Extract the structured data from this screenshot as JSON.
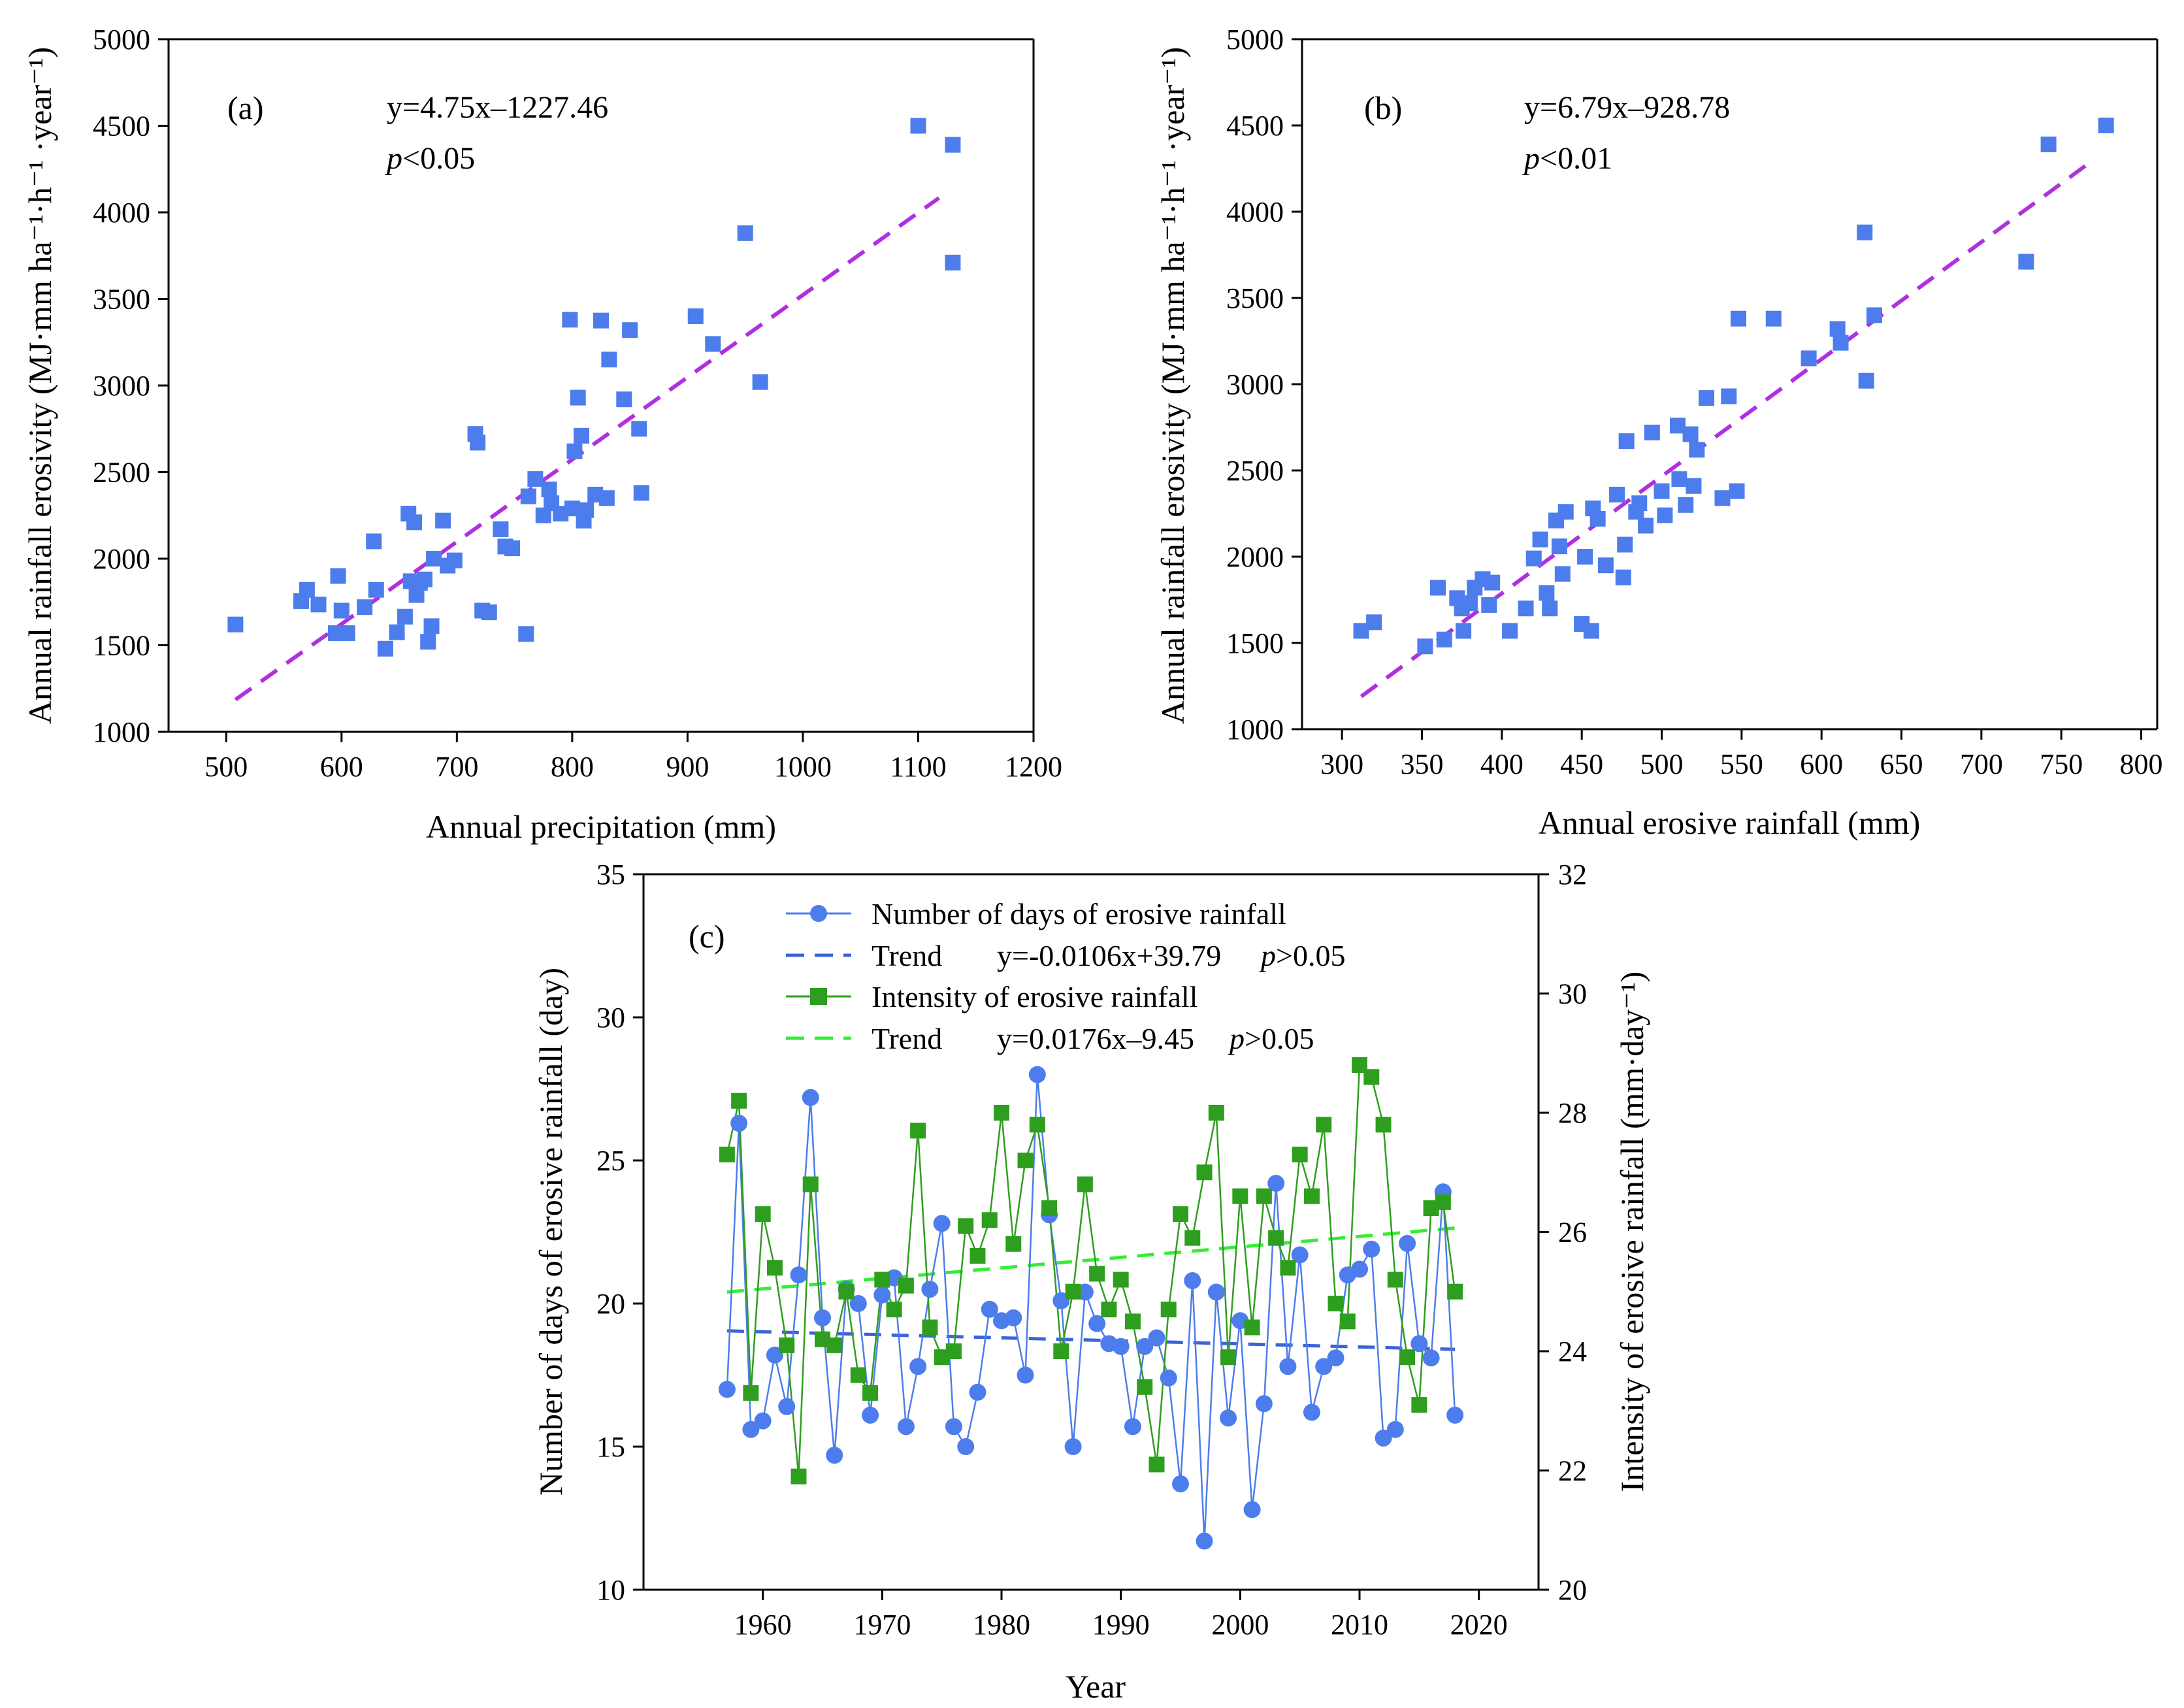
{
  "chart_data": [
    {
      "id": "a",
      "type": "scatter",
      "panel_label": "(a)",
      "xlabel": "Annual precipitation (mm)",
      "ylabel": "Annual rainfall erosivity (MJ·mm ha⁻¹·h⁻¹ ·year⁻¹)",
      "xlim": [
        450,
        1200
      ],
      "ylim": [
        1000,
        5000
      ],
      "xticks": [
        500,
        600,
        700,
        800,
        900,
        1000,
        1100,
        1200
      ],
      "yticks": [
        1000,
        1500,
        2000,
        2500,
        3000,
        3500,
        4000,
        4500,
        5000
      ],
      "equation": "y=4.75x–1227.46",
      "p_prefix": "p",
      "p_value": "<0.05",
      "marker_color": "#4d7ded",
      "trend_color": "#b030e0",
      "trend": {
        "slope": 4.75,
        "intercept": -1227.46,
        "x_range": [
          508,
          1118
        ]
      },
      "points": [
        [
          508,
          1620
        ],
        [
          565,
          1755
        ],
        [
          570,
          1820
        ],
        [
          580,
          1735
        ],
        [
          597,
          1900
        ],
        [
          600,
          1700
        ],
        [
          595,
          1570
        ],
        [
          605,
          1570
        ],
        [
          620,
          1720
        ],
        [
          628,
          2100
        ],
        [
          630,
          1820
        ],
        [
          638,
          1480
        ],
        [
          648,
          1575
        ],
        [
          655,
          1665
        ],
        [
          658,
          2260
        ],
        [
          660,
          1870
        ],
        [
          663,
          2210
        ],
        [
          665,
          1790
        ],
        [
          668,
          1860
        ],
        [
          672,
          1880
        ],
        [
          675,
          1520
        ],
        [
          678,
          1610
        ],
        [
          680,
          2000
        ],
        [
          688,
          2220
        ],
        [
          692,
          1960
        ],
        [
          698,
          1990
        ],
        [
          716,
          2720
        ],
        [
          718,
          2670
        ],
        [
          722,
          1700
        ],
        [
          728,
          1690
        ],
        [
          738,
          2170
        ],
        [
          742,
          2070
        ],
        [
          748,
          2060
        ],
        [
          760,
          1565
        ],
        [
          762,
          2360
        ],
        [
          768,
          2460
        ],
        [
          775,
          2250
        ],
        [
          780,
          2400
        ],
        [
          782,
          2320
        ],
        [
          790,
          2260
        ],
        [
          798,
          3380
        ],
        [
          800,
          2290
        ],
        [
          802,
          2620
        ],
        [
          805,
          2930
        ],
        [
          808,
          2710
        ],
        [
          810,
          2220
        ],
        [
          812,
          2280
        ],
        [
          820,
          2370
        ],
        [
          825,
          3375
        ],
        [
          830,
          2350
        ],
        [
          832,
          3150
        ],
        [
          845,
          2920
        ],
        [
          850,
          3320
        ],
        [
          858,
          2750
        ],
        [
          860,
          2380
        ],
        [
          907,
          3400
        ],
        [
          922,
          3240
        ],
        [
          950,
          3880
        ],
        [
          963,
          3020
        ],
        [
          1100,
          4500
        ],
        [
          1130,
          4390
        ],
        [
          1130,
          3710
        ]
      ]
    },
    {
      "id": "b",
      "type": "scatter",
      "panel_label": "(b)",
      "xlabel": "Annual erosive rainfall (mm)",
      "ylabel": "Annual rainfall erosivity (MJ·mm ha⁻¹·h⁻¹ ·year⁻¹)",
      "xlim": [
        275,
        810
      ],
      "ylim": [
        1000,
        5000
      ],
      "xticks": [
        300,
        350,
        400,
        450,
        500,
        550,
        600,
        650,
        700,
        750,
        800
      ],
      "yticks": [
        1000,
        1500,
        2000,
        2500,
        3000,
        3500,
        4000,
        4500,
        5000
      ],
      "equation": "y=6.79x–928.78",
      "p_prefix": "p",
      "p_value": "<0.01",
      "marker_color": "#4d7ded",
      "trend_color": "#b030e0",
      "trend": {
        "slope": 6.79,
        "intercept": -928.78,
        "x_range": [
          312,
          770
        ]
      },
      "points": [
        [
          312,
          1570
        ],
        [
          320,
          1620
        ],
        [
          352,
          1480
        ],
        [
          360,
          1820
        ],
        [
          364,
          1520
        ],
        [
          372,
          1760
        ],
        [
          375,
          1700
        ],
        [
          376,
          1570
        ],
        [
          380,
          1730
        ],
        [
          383,
          1820
        ],
        [
          388,
          1870
        ],
        [
          392,
          1720
        ],
        [
          394,
          1850
        ],
        [
          405,
          1570
        ],
        [
          415,
          1700
        ],
        [
          420,
          1990
        ],
        [
          424,
          2100
        ],
        [
          428,
          1790
        ],
        [
          430,
          1700
        ],
        [
          434,
          2210
        ],
        [
          436,
          2060
        ],
        [
          438,
          1900
        ],
        [
          440,
          2260
        ],
        [
          450,
          1610
        ],
        [
          452,
          2000
        ],
        [
          456,
          1570
        ],
        [
          457,
          2280
        ],
        [
          460,
          2220
        ],
        [
          465,
          1950
        ],
        [
          472,
          2360
        ],
        [
          476,
          1880
        ],
        [
          477,
          2070
        ],
        [
          478,
          2670
        ],
        [
          484,
          2260
        ],
        [
          486,
          2310
        ],
        [
          490,
          2180
        ],
        [
          494,
          2720
        ],
        [
          500,
          2380
        ],
        [
          502,
          2240
        ],
        [
          510,
          2760
        ],
        [
          511,
          2450
        ],
        [
          515,
          2300
        ],
        [
          518,
          2710
        ],
        [
          520,
          2410
        ],
        [
          522,
          2620
        ],
        [
          528,
          2920
        ],
        [
          538,
          2340
        ],
        [
          542,
          2930
        ],
        [
          547,
          2380
        ],
        [
          548,
          3380
        ],
        [
          570,
          3380
        ],
        [
          592,
          3150
        ],
        [
          610,
          3320
        ],
        [
          612,
          3240
        ],
        [
          627,
          3880
        ],
        [
          628,
          3020
        ],
        [
          633,
          3400
        ],
        [
          728,
          3710
        ],
        [
          742,
          4390
        ],
        [
          778,
          4500
        ]
      ]
    },
    {
      "id": "c",
      "type": "line",
      "panel_label": "(c)",
      "xlabel": "Year",
      "ylabel_left": "Number of days of erosive rainfall (day)",
      "ylabel_right": "Intensity of erosive rainfall (mm·day⁻¹)",
      "xlim": [
        1950,
        2025
      ],
      "ylim_left": [
        10,
        35
      ],
      "ylim_right": [
        20,
        32
      ],
      "xticks": [
        1960,
        1970,
        1980,
        1990,
        2000,
        2010,
        2020
      ],
      "yticks_left": [
        10,
        15,
        20,
        25,
        30,
        35
      ],
      "yticks_right": [
        20,
        22,
        24,
        26,
        28,
        30,
        32
      ],
      "x": [
        1957,
        1958,
        1959,
        1960,
        1961,
        1962,
        1963,
        1964,
        1965,
        1966,
        1967,
        1968,
        1969,
        1970,
        1971,
        1972,
        1973,
        1974,
        1975,
        1976,
        1977,
        1978,
        1979,
        1980,
        1981,
        1982,
        1983,
        1984,
        1985,
        1986,
        1987,
        1988,
        1989,
        1990,
        1991,
        1992,
        1993,
        1994,
        1995,
        1996,
        1997,
        1998,
        1999,
        2000,
        2001,
        2002,
        2003,
        2004,
        2005,
        2006,
        2007,
        2008,
        2009,
        2010,
        2011,
        2012,
        2013,
        2014,
        2015,
        2016,
        2017,
        2018
      ],
      "series": [
        {
          "name": "Number of days of erosive rainfall",
          "axis": "left",
          "color": "#4d7ded",
          "marker": "circle",
          "values": [
            17.0,
            26.3,
            15.6,
            15.9,
            18.2,
            16.4,
            21.0,
            27.2,
            19.5,
            14.7,
            20.5,
            20.0,
            16.1,
            20.3,
            20.9,
            15.7,
            17.8,
            20.5,
            22.8,
            15.7,
            15.0,
            16.9,
            19.8,
            19.4,
            19.5,
            17.5,
            28.0,
            23.1,
            20.1,
            15.0,
            20.4,
            19.3,
            18.6,
            18.5,
            15.7,
            18.5,
            18.8,
            17.4,
            13.7,
            20.8,
            11.7,
            20.4,
            16.0,
            19.4,
            12.8,
            16.5,
            24.2,
            17.8,
            21.7,
            16.2,
            17.8,
            18.1,
            21.0,
            21.2,
            21.9,
            15.3,
            15.6,
            22.1,
            18.6,
            18.1,
            23.9,
            16.1
          ]
        },
        {
          "name": "Intensity of erosive rainfall",
          "axis": "right",
          "color": "#2e9e1e",
          "marker": "square",
          "values": [
            27.3,
            28.2,
            23.3,
            26.3,
            25.4,
            24.1,
            21.9,
            26.8,
            24.2,
            24.1,
            25.0,
            23.6,
            23.3,
            25.2,
            24.7,
            25.1,
            27.7,
            24.4,
            23.9,
            24.0,
            26.1,
            25.6,
            26.2,
            28.0,
            25.8,
            27.2,
            27.8,
            26.4,
            24.0,
            25.0,
            26.8,
            25.3,
            24.7,
            25.2,
            24.5,
            23.4,
            22.1,
            24.7,
            26.3,
            25.9,
            27.0,
            28.0,
            23.9,
            26.6,
            24.4,
            26.6,
            25.9,
            25.4,
            27.3,
            26.6,
            27.8,
            24.8,
            24.5,
            28.8,
            28.6,
            27.8,
            25.2,
            23.9,
            23.1,
            26.4,
            26.5,
            25.0
          ]
        }
      ],
      "legend": [
        {
          "label": "Number of days of erosive rainfall",
          "color": "#4d7ded",
          "kind": "circle-line"
        },
        {
          "label": "Trend",
          "equation": "y=-0.0106x+39.79",
          "p_prefix": "p",
          "p_value": ">0.05",
          "color": "#3b63d8",
          "kind": "dash"
        },
        {
          "label": "Intensity of erosive rainfall",
          "color": "#2e9e1e",
          "kind": "square-line"
        },
        {
          "label": "Trend",
          "equation": "y=0.0176x–9.45",
          "p_prefix": "p",
          "p_value": ">0.05",
          "color": "#33ee33",
          "kind": "dash"
        }
      ],
      "trends": [
        {
          "axis": "left",
          "slope": -0.0106,
          "intercept": 39.79,
          "color": "#3b63d8"
        },
        {
          "axis": "right",
          "slope": 0.0176,
          "intercept": -9.45,
          "color": "#33ee33"
        }
      ]
    }
  ]
}
